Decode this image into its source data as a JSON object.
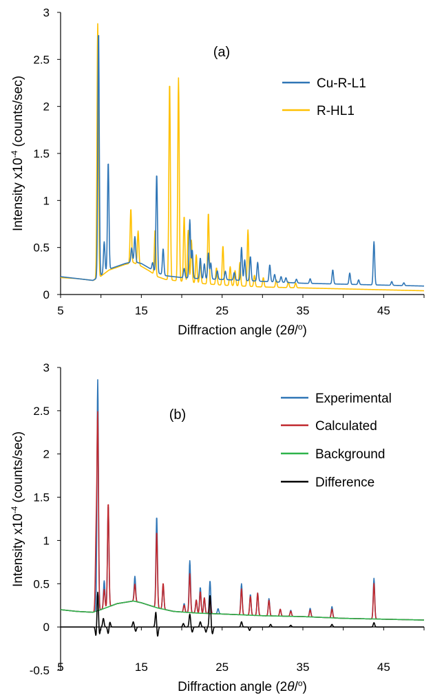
{
  "chart_data": [
    {
      "type": "line",
      "panel_label": "(a)",
      "xlabel_prefix": "Diffraction angle (2",
      "xlabel_theta": "θ",
      "xlabel_suffix": "/",
      "xlabel_degree": "o",
      "xlabel_close": ")",
      "ylabel_prefix": "Intensity x10",
      "ylabel_exp": "-4",
      "ylabel_suffix": " (counts/sec)",
      "xlim": [
        5,
        50
      ],
      "ylim": [
        0,
        3
      ],
      "xticks": [
        "5",
        "15",
        "25",
        "35",
        "45"
      ],
      "yticks": [
        "0",
        "0.5",
        "1",
        "1.5",
        "2",
        "2.5",
        "3"
      ],
      "legend_position": "right",
      "series": [
        {
          "name": "Cu-R-L1",
          "color": "#2e75b6",
          "baseline": [
            [
              5,
              0.19
            ],
            [
              7,
              0.17
            ],
            [
              9,
              0.15
            ],
            [
              9.6,
              0.18
            ],
            [
              11,
              0.27
            ],
            [
              13,
              0.33
            ],
            [
              14,
              0.35
            ],
            [
              15,
              0.33
            ],
            [
              16,
              0.28
            ],
            [
              17,
              0.23
            ],
            [
              18,
              0.2
            ],
            [
              20,
              0.18
            ],
            [
              22,
              0.17
            ],
            [
              25,
              0.16
            ],
            [
              30,
              0.14
            ],
            [
              35,
              0.12
            ],
            [
              40,
              0.11
            ],
            [
              45,
              0.1
            ],
            [
              50,
              0.09
            ]
          ],
          "peaks": [
            [
              9.7,
              2.63
            ],
            [
              10.4,
              0.33
            ],
            [
              10.9,
              1.15
            ],
            [
              13.8,
              0.15
            ],
            [
              14.2,
              0.27
            ],
            [
              16.4,
              0.08
            ],
            [
              16.9,
              1.05
            ],
            [
              17.7,
              0.28
            ],
            [
              20.3,
              0.1
            ],
            [
              21.0,
              0.62
            ],
            [
              21.3,
              0.3
            ],
            [
              22.3,
              0.22
            ],
            [
              22.8,
              0.16
            ],
            [
              23.3,
              0.28
            ],
            [
              23.6,
              0.17
            ],
            [
              24.4,
              0.09
            ],
            [
              25.4,
              0.09
            ],
            [
              26.5,
              0.08
            ],
            [
              27.4,
              0.35
            ],
            [
              27.8,
              0.22
            ],
            [
              28.5,
              0.26
            ],
            [
              29.4,
              0.2
            ],
            [
              30.9,
              0.18
            ],
            [
              31.5,
              0.08
            ],
            [
              32.3,
              0.06
            ],
            [
              32.9,
              0.05
            ],
            [
              34.2,
              0.04
            ],
            [
              35.9,
              0.05
            ],
            [
              38.7,
              0.15
            ],
            [
              40.8,
              0.12
            ],
            [
              41.9,
              0.05
            ],
            [
              43.8,
              0.46
            ],
            [
              46.0,
              0.04
            ],
            [
              47.5,
              0.03
            ]
          ]
        },
        {
          "name": "R-HL1",
          "color": "#ffc000",
          "baseline": [
            [
              5,
              0.18
            ],
            [
              7,
              0.17
            ],
            [
              9,
              0.15
            ],
            [
              9.6,
              0.17
            ],
            [
              11,
              0.26
            ],
            [
              13,
              0.32
            ],
            [
              14,
              0.34
            ],
            [
              15,
              0.3
            ],
            [
              16,
              0.25
            ],
            [
              17,
              0.19
            ],
            [
              18,
              0.16
            ],
            [
              20,
              0.14
            ],
            [
              22,
              0.12
            ],
            [
              25,
              0.1
            ],
            [
              30,
              0.08
            ],
            [
              35,
              0.07
            ],
            [
              40,
              0.06
            ],
            [
              45,
              0.05
            ],
            [
              50,
              0.04
            ]
          ],
          "peaks": [
            [
              9.6,
              2.71
            ],
            [
              13.7,
              0.58
            ],
            [
              14.6,
              0.36
            ],
            [
              16.7,
              0.48
            ],
            [
              18.5,
              2.11
            ],
            [
              19.6,
              2.16
            ],
            [
              20.3,
              0.7
            ],
            [
              20.8,
              0.55
            ],
            [
              21.2,
              0.45
            ],
            [
              21.8,
              0.3
            ],
            [
              22.3,
              0.22
            ],
            [
              23.3,
              0.76
            ],
            [
              24.3,
              0.18
            ],
            [
              25.1,
              0.42
            ],
            [
              26.0,
              0.2
            ],
            [
              26.6,
              0.16
            ],
            [
              27.2,
              0.25
            ],
            [
              28.2,
              0.6
            ],
            [
              29.0,
              0.12
            ],
            [
              30.1,
              0.1
            ],
            [
              31.7,
              0.08
            ],
            [
              33.2,
              0.06
            ],
            [
              34.1,
              0.05
            ]
          ]
        }
      ]
    },
    {
      "type": "line",
      "panel_label": "(b)",
      "xlabel_prefix": "Diffraction angle (2",
      "xlabel_theta": "θ",
      "xlabel_suffix": "/",
      "xlabel_degree": "o",
      "xlabel_close": ")",
      "ylabel_prefix": "Intensity x10",
      "ylabel_exp": "-4",
      "ylabel_suffix": " (counts/sec)",
      "xlim": [
        5,
        50
      ],
      "ylim": [
        -0.5,
        3
      ],
      "xticks": [
        "5",
        "15",
        "25",
        "35",
        "45"
      ],
      "yticks": [
        "-0.5",
        "0",
        "0.5",
        "1",
        "1.5",
        "2",
        "2.5",
        "3"
      ],
      "legend_position": "top-right",
      "series": [
        {
          "name": "Experimental",
          "color": "#2e75b6",
          "baseline": [
            [
              5,
              0.2
            ],
            [
              7,
              0.18
            ],
            [
              9,
              0.17
            ],
            [
              10,
              0.2
            ],
            [
              12,
              0.27
            ],
            [
              14,
              0.3
            ],
            [
              15,
              0.28
            ],
            [
              17,
              0.22
            ],
            [
              19,
              0.18
            ],
            [
              22,
              0.16
            ],
            [
              25,
              0.15
            ],
            [
              30,
              0.13
            ],
            [
              35,
              0.12
            ],
            [
              40,
              0.1
            ],
            [
              45,
              0.09
            ],
            [
              50,
              0.08
            ]
          ],
          "peaks": [
            [
              9.6,
              2.67
            ],
            [
              10.4,
              0.32
            ],
            [
              10.9,
              1.18
            ],
            [
              14.2,
              0.29
            ],
            [
              16.9,
              1.06
            ],
            [
              17.7,
              0.28
            ],
            [
              20.3,
              0.1
            ],
            [
              21.0,
              0.6
            ],
            [
              21.8,
              0.15
            ],
            [
              22.3,
              0.3
            ],
            [
              22.8,
              0.18
            ],
            [
              23.5,
              0.38
            ],
            [
              24.5,
              0.06
            ],
            [
              27.4,
              0.36
            ],
            [
              28.5,
              0.24
            ],
            [
              29.4,
              0.26
            ],
            [
              30.8,
              0.2
            ],
            [
              32.2,
              0.08
            ],
            [
              33.5,
              0.07
            ],
            [
              35.9,
              0.1
            ],
            [
              38.6,
              0.13
            ],
            [
              43.8,
              0.47
            ]
          ]
        },
        {
          "name": "Calculated",
          "color": "#c0282d",
          "baseline": [
            [
              5,
              0.2
            ],
            [
              7,
              0.18
            ],
            [
              9,
              0.17
            ],
            [
              10,
              0.2
            ],
            [
              12,
              0.27
            ],
            [
              14,
              0.3
            ],
            [
              15,
              0.28
            ],
            [
              17,
              0.22
            ],
            [
              19,
              0.18
            ],
            [
              22,
              0.16
            ],
            [
              25,
              0.15
            ],
            [
              30,
              0.13
            ],
            [
              35,
              0.12
            ],
            [
              40,
              0.1
            ],
            [
              45,
              0.09
            ],
            [
              50,
              0.08
            ]
          ],
          "peaks": [
            [
              9.4,
              0.85
            ],
            [
              9.6,
              2.23
            ],
            [
              10.4,
              0.22
            ],
            [
              10.9,
              1.21
            ],
            [
              14.2,
              0.2
            ],
            [
              16.9,
              0.88
            ],
            [
              17.7,
              0.3
            ],
            [
              20.3,
              0.08
            ],
            [
              21.0,
              0.45
            ],
            [
              21.8,
              0.15
            ],
            [
              22.3,
              0.25
            ],
            [
              22.8,
              0.18
            ],
            [
              23.5,
              0.2
            ],
            [
              27.4,
              0.3
            ],
            [
              28.5,
              0.22
            ],
            [
              29.4,
              0.26
            ],
            [
              30.8,
              0.18
            ],
            [
              32.2,
              0.08
            ],
            [
              33.5,
              0.06
            ],
            [
              35.9,
              0.08
            ],
            [
              38.6,
              0.1
            ],
            [
              43.8,
              0.41
            ]
          ]
        },
        {
          "name": "Background",
          "color": "#2db34a",
          "baseline": [
            [
              5,
              0.2
            ],
            [
              7,
              0.18
            ],
            [
              9,
              0.17
            ],
            [
              10,
              0.2
            ],
            [
              12,
              0.27
            ],
            [
              14,
              0.3
            ],
            [
              15,
              0.28
            ],
            [
              17,
              0.22
            ],
            [
              19,
              0.18
            ],
            [
              22,
              0.16
            ],
            [
              25,
              0.15
            ],
            [
              30,
              0.13
            ],
            [
              35,
              0.12
            ],
            [
              40,
              0.1
            ],
            [
              45,
              0.09
            ],
            [
              50,
              0.08
            ]
          ],
          "peaks": []
        },
        {
          "name": "Difference",
          "color": "#000000",
          "baseline": [
            [
              5,
              0
            ],
            [
              50,
              0
            ]
          ],
          "peaks": [
            [
              9.4,
              -0.12
            ],
            [
              9.6,
              0.42
            ],
            [
              9.8,
              -0.1
            ],
            [
              10.3,
              0.1
            ],
            [
              10.9,
              -0.08
            ],
            [
              11.1,
              0.06
            ],
            [
              14.0,
              0.06
            ],
            [
              14.3,
              -0.05
            ],
            [
              16.8,
              0.18
            ],
            [
              17.0,
              -0.12
            ],
            [
              20.2,
              0.04
            ],
            [
              21.0,
              0.15
            ],
            [
              21.3,
              -0.06
            ],
            [
              22.3,
              0.06
            ],
            [
              23.0,
              -0.06
            ],
            [
              23.5,
              0.37
            ],
            [
              23.8,
              -0.08
            ],
            [
              27.4,
              0.06
            ],
            [
              28.4,
              -0.04
            ],
            [
              31.0,
              0.03
            ],
            [
              33.5,
              0.02
            ],
            [
              38.6,
              0.03
            ],
            [
              43.8,
              0.05
            ]
          ]
        }
      ]
    }
  ]
}
